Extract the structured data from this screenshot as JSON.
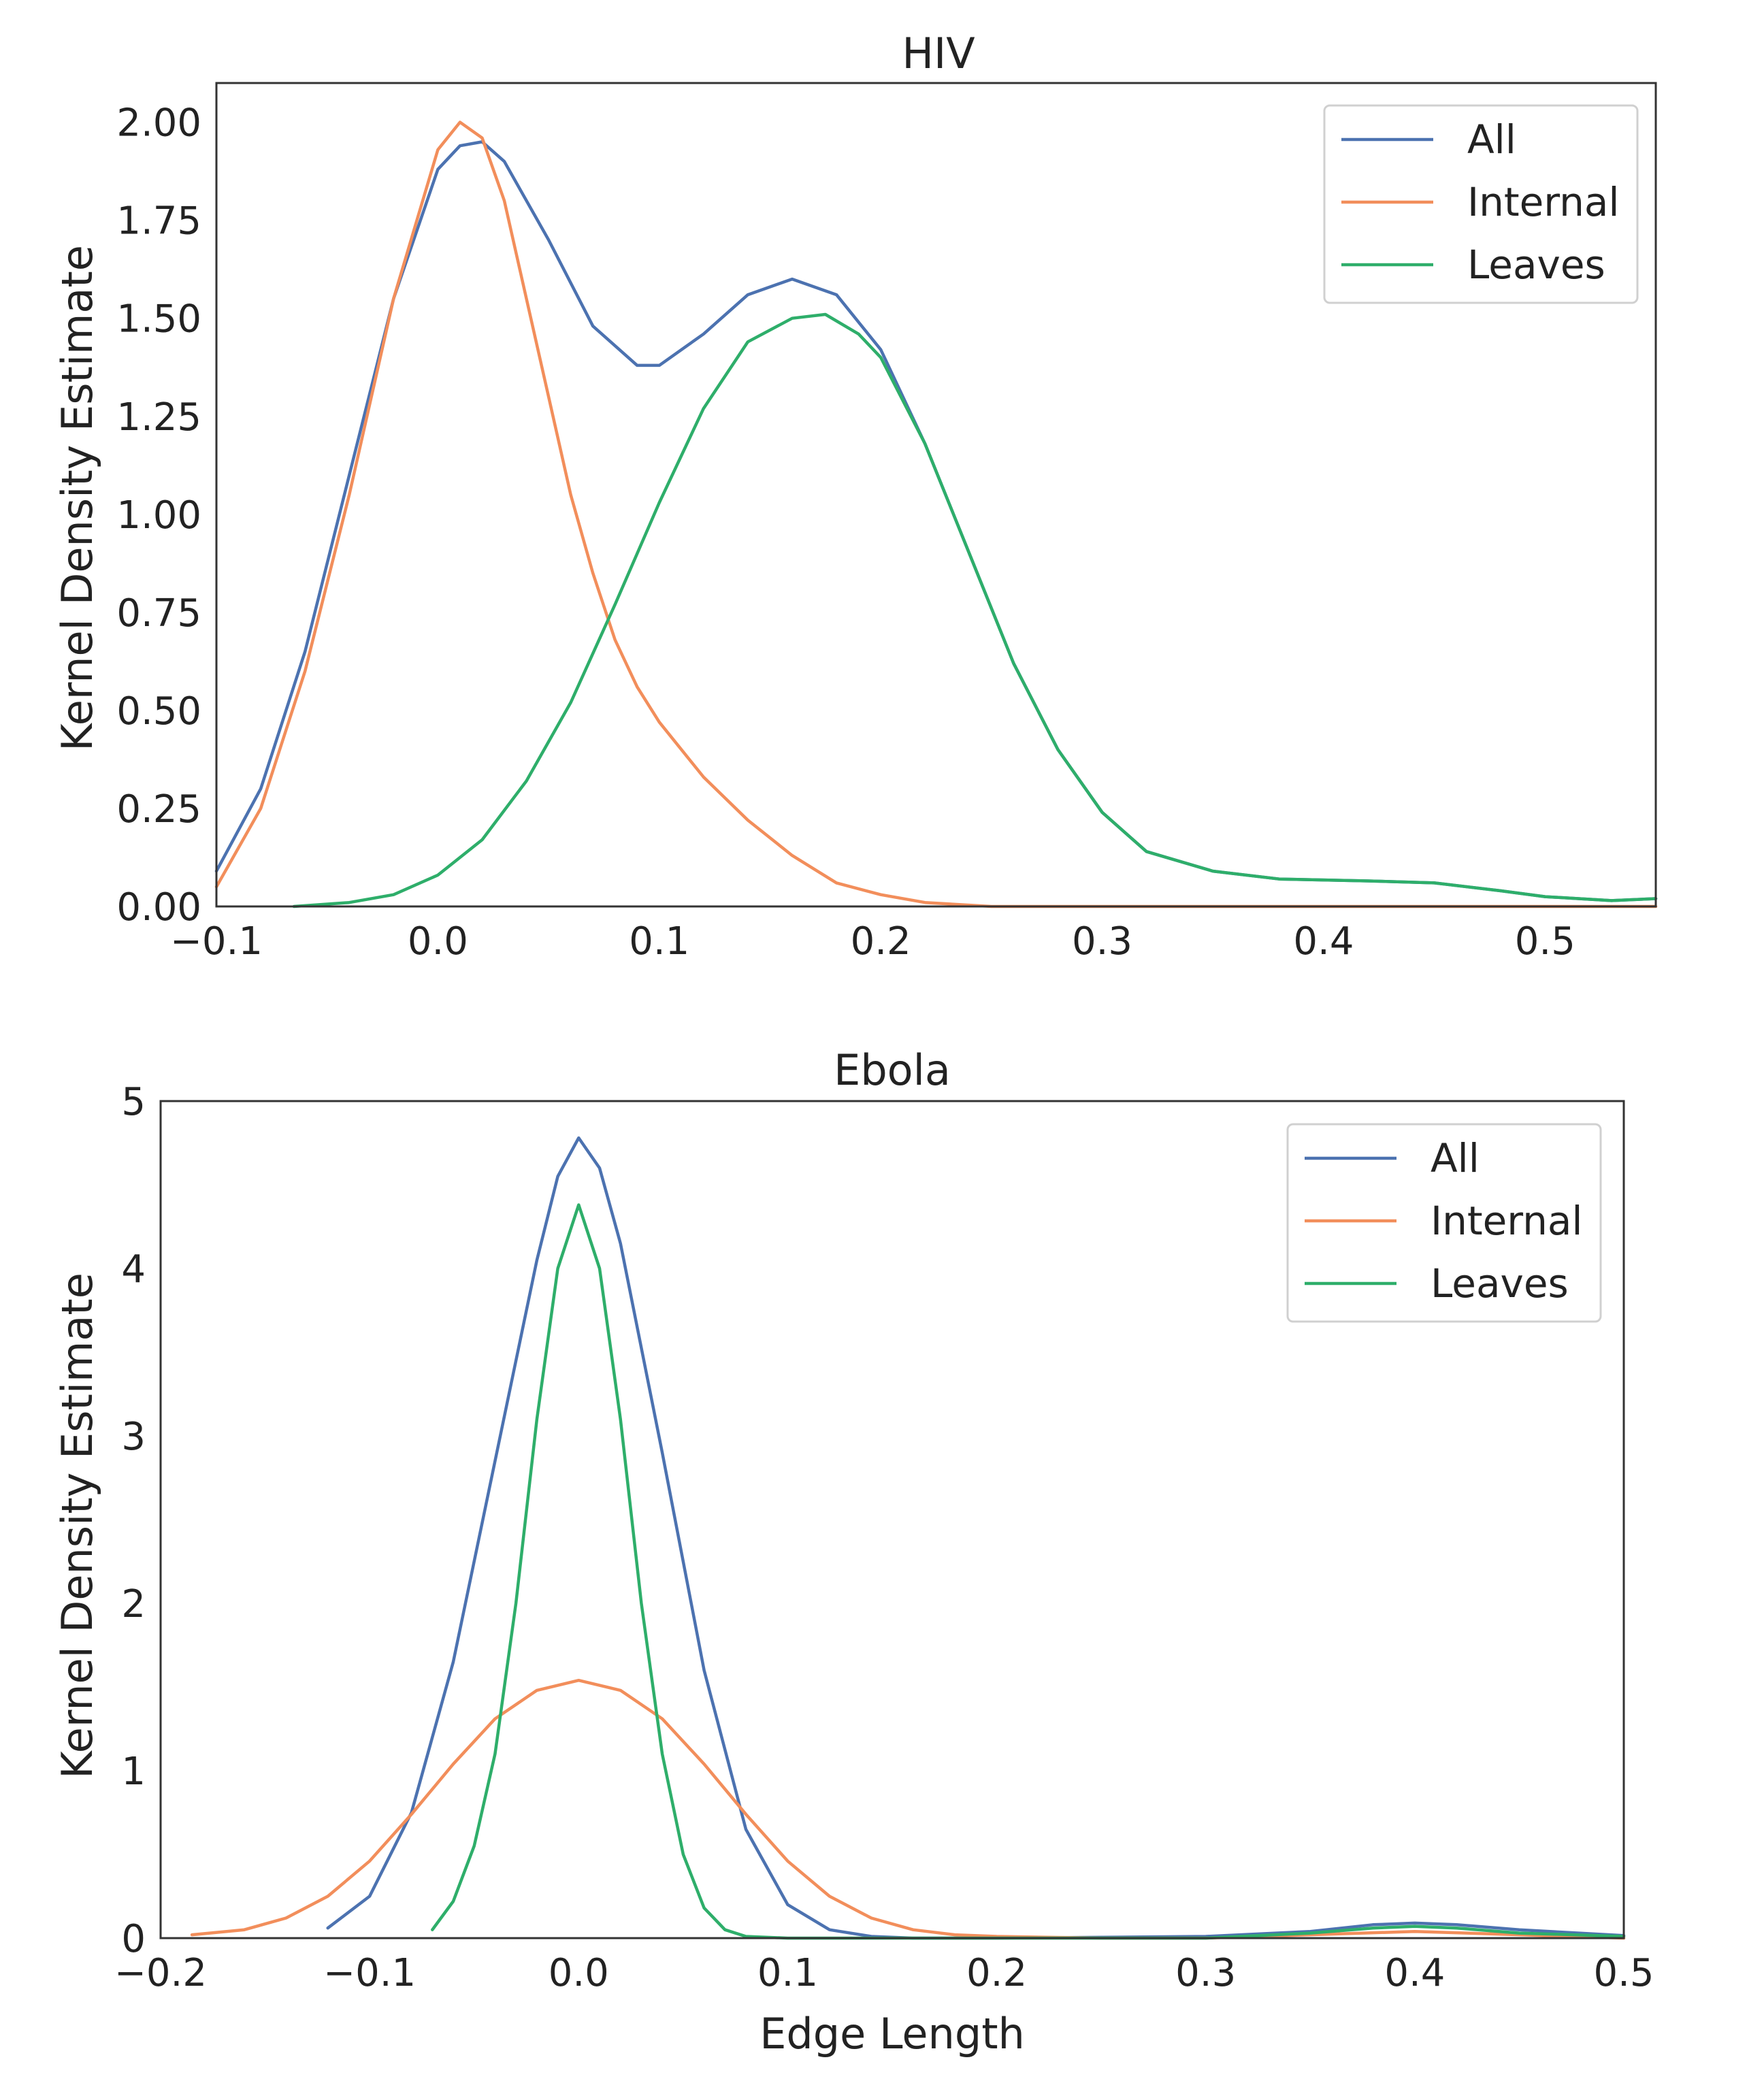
{
  "colors": {
    "all": "#4c72b0",
    "internal": "#f28e5b",
    "leaves": "#2eae6a"
  },
  "chart_data": [
    {
      "type": "line",
      "title": "HIV",
      "xlabel": "",
      "ylabel": "Kernel Density Estimate",
      "xlim": [
        -0.1,
        0.55
      ],
      "ylim": [
        0,
        2.1
      ],
      "xticks": [
        -0.1,
        0.0,
        0.1,
        0.2,
        0.3,
        0.4,
        0.5
      ],
      "xtick_labels": [
        "−0.1",
        "0.0",
        "0.1",
        "0.2",
        "0.3",
        "0.4",
        "0.5"
      ],
      "yticks": [
        0,
        0.25,
        0.5,
        0.75,
        1.0,
        1.25,
        1.5,
        1.75,
        2.0
      ],
      "ytick_labels": [
        "0.00",
        "0.25",
        "0.50",
        "0.75",
        "1.00",
        "1.25",
        "1.50",
        "1.75",
        "2.00"
      ],
      "legend": "top-right",
      "series": [
        {
          "name": "All",
          "color_key": "all",
          "x": [
            -0.1,
            -0.08,
            -0.06,
            -0.04,
            -0.02,
            0.0,
            0.01,
            0.02,
            0.03,
            0.05,
            0.07,
            0.09,
            0.1,
            0.12,
            0.14,
            0.16,
            0.18,
            0.2,
            0.22,
            0.24,
            0.26,
            0.28,
            0.3,
            0.32,
            0.35,
            0.38,
            0.42,
            0.45,
            0.48,
            0.5,
            0.53,
            0.55
          ],
          "y": [
            0.09,
            0.3,
            0.65,
            1.1,
            1.55,
            1.88,
            1.94,
            1.95,
            1.9,
            1.7,
            1.48,
            1.38,
            1.38,
            1.46,
            1.56,
            1.6,
            1.56,
            1.42,
            1.18,
            0.9,
            0.62,
            0.4,
            0.24,
            0.14,
            0.09,
            0.07,
            0.065,
            0.06,
            0.04,
            0.025,
            0.015,
            0.02
          ]
        },
        {
          "name": "Internal",
          "color_key": "internal",
          "x": [
            -0.1,
            -0.08,
            -0.06,
            -0.04,
            -0.02,
            0.0,
            0.01,
            0.02,
            0.03,
            0.04,
            0.05,
            0.06,
            0.07,
            0.08,
            0.09,
            0.1,
            0.12,
            0.14,
            0.16,
            0.18,
            0.2,
            0.22,
            0.25,
            0.3,
            0.55
          ],
          "y": [
            0.05,
            0.25,
            0.6,
            1.05,
            1.55,
            1.93,
            2.0,
            1.96,
            1.8,
            1.55,
            1.3,
            1.05,
            0.85,
            0.68,
            0.56,
            0.47,
            0.33,
            0.22,
            0.13,
            0.06,
            0.03,
            0.01,
            0.0,
            0.0,
            0.0
          ]
        },
        {
          "name": "Leaves",
          "color_key": "leaves",
          "x": [
            -0.065,
            -0.04,
            -0.02,
            0.0,
            0.02,
            0.04,
            0.06,
            0.08,
            0.1,
            0.12,
            0.14,
            0.16,
            0.175,
            0.19,
            0.2,
            0.22,
            0.24,
            0.26,
            0.28,
            0.3,
            0.32,
            0.35,
            0.38,
            0.42,
            0.45,
            0.48,
            0.5,
            0.53,
            0.55
          ],
          "y": [
            0.0,
            0.01,
            0.03,
            0.08,
            0.17,
            0.32,
            0.52,
            0.77,
            1.03,
            1.27,
            1.44,
            1.5,
            1.51,
            1.46,
            1.4,
            1.18,
            0.9,
            0.62,
            0.4,
            0.24,
            0.14,
            0.09,
            0.07,
            0.065,
            0.06,
            0.04,
            0.025,
            0.015,
            0.02
          ]
        }
      ]
    },
    {
      "type": "line",
      "title": "Ebola",
      "xlabel": "Edge Length",
      "ylabel": "Kernel Density Estimate",
      "xlim": [
        -0.2,
        0.5
      ],
      "ylim": [
        0,
        5
      ],
      "xticks": [
        -0.2,
        -0.1,
        0.0,
        0.1,
        0.2,
        0.3,
        0.4,
        0.5
      ],
      "xtick_labels": [
        "−0.2",
        "−0.1",
        "0.0",
        "0.1",
        "0.2",
        "0.3",
        "0.4",
        "0.5"
      ],
      "yticks": [
        0,
        1,
        2,
        3,
        4,
        5
      ],
      "ytick_labels": [
        "0",
        "1",
        "2",
        "3",
        "4",
        "5"
      ],
      "legend": "top-right",
      "series": [
        {
          "name": "All",
          "color_key": "all",
          "x": [
            -0.12,
            -0.1,
            -0.08,
            -0.06,
            -0.04,
            -0.02,
            -0.01,
            0.0,
            0.01,
            0.02,
            0.04,
            0.06,
            0.08,
            0.1,
            0.12,
            0.14,
            0.16,
            0.2,
            0.3,
            0.35,
            0.38,
            0.4,
            0.42,
            0.45,
            0.5
          ],
          "y": [
            0.06,
            0.25,
            0.75,
            1.65,
            2.85,
            4.05,
            4.55,
            4.78,
            4.6,
            4.15,
            2.9,
            1.6,
            0.65,
            0.2,
            0.05,
            0.01,
            0.0,
            0.0,
            0.01,
            0.04,
            0.08,
            0.09,
            0.08,
            0.05,
            0.015
          ]
        },
        {
          "name": "Internal",
          "color_key": "internal",
          "x": [
            -0.185,
            -0.16,
            -0.14,
            -0.12,
            -0.1,
            -0.08,
            -0.06,
            -0.04,
            -0.02,
            0.0,
            0.02,
            0.04,
            0.06,
            0.08,
            0.1,
            0.12,
            0.14,
            0.16,
            0.18,
            0.2,
            0.25,
            0.3,
            0.35,
            0.4,
            0.45,
            0.5
          ],
          "y": [
            0.02,
            0.05,
            0.12,
            0.25,
            0.46,
            0.74,
            1.04,
            1.31,
            1.48,
            1.54,
            1.48,
            1.31,
            1.04,
            0.74,
            0.46,
            0.25,
            0.12,
            0.05,
            0.02,
            0.01,
            0.0,
            0.0,
            0.02,
            0.04,
            0.02,
            0.0
          ]
        },
        {
          "name": "Leaves",
          "color_key": "leaves",
          "x": [
            -0.07,
            -0.06,
            -0.05,
            -0.04,
            -0.03,
            -0.02,
            -0.01,
            0.0,
            0.01,
            0.02,
            0.03,
            0.04,
            0.05,
            0.06,
            0.07,
            0.08,
            0.1,
            0.3,
            0.35,
            0.38,
            0.4,
            0.42,
            0.45,
            0.5
          ],
          "y": [
            0.05,
            0.22,
            0.55,
            1.1,
            2.0,
            3.1,
            4.0,
            4.38,
            4.0,
            3.1,
            2.0,
            1.1,
            0.5,
            0.18,
            0.05,
            0.01,
            0.0,
            0.0,
            0.03,
            0.06,
            0.07,
            0.06,
            0.03,
            0.01
          ]
        }
      ]
    }
  ]
}
